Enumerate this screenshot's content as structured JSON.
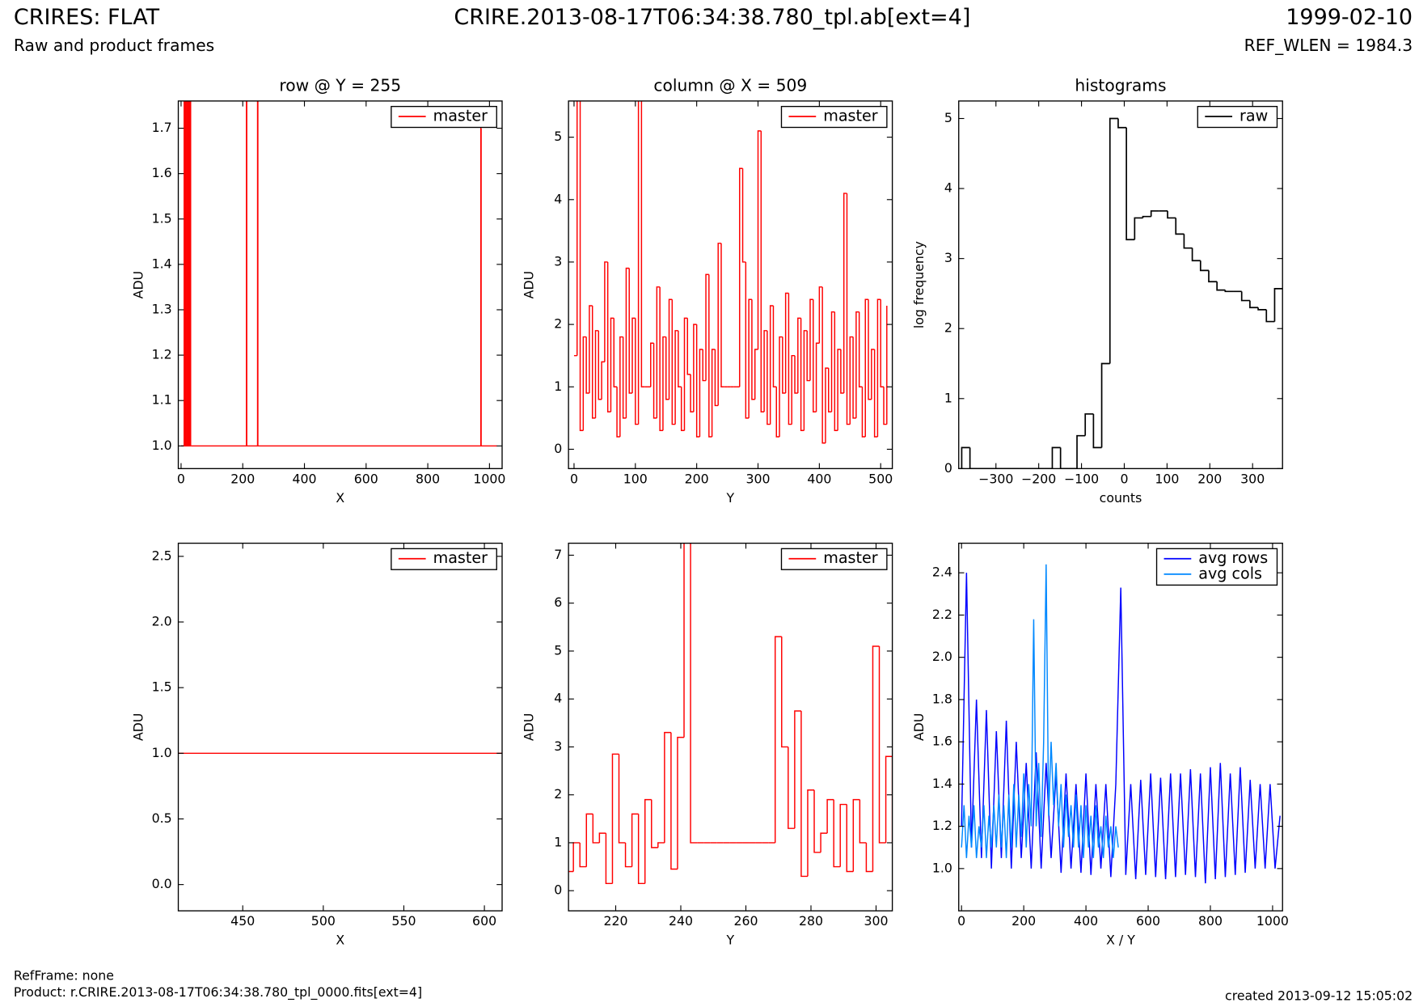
{
  "header": {
    "title": "CRIRES: FLAT",
    "subtitle": "Raw and product frames",
    "file": "CRIRE.2013-08-17T06:34:38.780_tpl.ab[ext=4]",
    "date": "1999-02-10",
    "ref_wlen": "REF_WLEN = 1984.3"
  },
  "footer": {
    "ref_frame": "RefFrame: none",
    "product": "Product: r.CRIRE.2013-08-17T06:34:38.780_tpl_0000.fits[ext=4]",
    "created": "created 2013-09-12 15:05:02"
  },
  "chart_data": [
    {
      "type": "line",
      "steps": true,
      "title": "row @ Y = 255",
      "x_label": "X",
      "y_label": "ADU",
      "legend": "upper right",
      "xlim": [
        -9,
        1041
      ],
      "ylim": [
        0.95,
        1.76
      ],
      "xticks": [
        0,
        200,
        400,
        600,
        800,
        1000
      ],
      "yticks": [
        {
          "value": 1.0,
          "label": "1.0"
        },
        1.1,
        1.2,
        1.3,
        1.4,
        1.5,
        1.6,
        1.7
      ],
      "series": [
        {
          "name": "master",
          "color": "#ff0000",
          "x": [
            0,
            10,
            11,
            14,
            15,
            18,
            19,
            22,
            23,
            26,
            27,
            30,
            31,
            34,
            212,
            213,
            248,
            249,
            972,
            973,
            1024
          ],
          "values": [
            1,
            2,
            1,
            2,
            1,
            2,
            1,
            2,
            1,
            2,
            1,
            2,
            1,
            1,
            2,
            1,
            2,
            1,
            1.7,
            1,
            1
          ]
        }
      ]
    },
    {
      "type": "line",
      "steps": true,
      "title": "column @ X = 509",
      "x_label": "Y",
      "y_label": "ADU",
      "legend": "upper right",
      "xlim": [
        -9,
        519
      ],
      "ylim": [
        -0.31,
        5.58
      ],
      "xticks": [
        0,
        100,
        200,
        300,
        400,
        500
      ],
      "yticks": [
        0,
        1,
        2,
        3,
        4,
        5
      ],
      "series": [
        {
          "name": "master",
          "color": "#ff0000",
          "x": [
            0,
            5,
            10,
            15,
            20,
            25,
            30,
            35,
            40,
            45,
            50,
            55,
            60,
            65,
            70,
            75,
            80,
            85,
            90,
            95,
            100,
            105,
            110,
            115,
            120,
            125,
            130,
            135,
            140,
            145,
            150,
            155,
            160,
            165,
            170,
            175,
            180,
            185,
            190,
            195,
            200,
            205,
            210,
            215,
            220,
            225,
            230,
            235,
            240,
            245,
            250,
            255,
            260,
            265,
            270,
            275,
            280,
            285,
            290,
            295,
            300,
            305,
            310,
            315,
            320,
            325,
            330,
            335,
            340,
            345,
            350,
            355,
            360,
            365,
            370,
            375,
            380,
            385,
            390,
            395,
            400,
            405,
            410,
            415,
            420,
            425,
            430,
            435,
            440,
            445,
            450,
            455,
            460,
            465,
            470,
            475,
            480,
            485,
            490,
            495,
            500,
            505,
            510
          ],
          "values": [
            1.5,
            5.6,
            0.3,
            1.8,
            0.9,
            2.3,
            0.5,
            1.9,
            0.8,
            1.4,
            3.0,
            0.6,
            2.1,
            1.0,
            0.2,
            1.8,
            0.5,
            2.9,
            0.9,
            2.1,
            0.4,
            5.6,
            1,
            1,
            1,
            1.7,
            0.5,
            2.6,
            0.3,
            1.8,
            0.8,
            2.4,
            0.4,
            1.9,
            1.0,
            0.3,
            2.1,
            1.2,
            0.6,
            2.0,
            0.2,
            1.6,
            1.1,
            2.8,
            0.2,
            1.6,
            0.7,
            3.3,
            1,
            1,
            1,
            1,
            1,
            1,
            4.5,
            3.0,
            0.5,
            2.4,
            0.8,
            1.6,
            5.1,
            0.6,
            1.9,
            0.4,
            2.3,
            1.0,
            0.2,
            1.8,
            0.9,
            2.5,
            0.4,
            1.5,
            0.9,
            2.1,
            0.3,
            1.9,
            1.1,
            2.4,
            0.6,
            1.7,
            2.6,
            0.1,
            1.3,
            0.6,
            2.2,
            0.3,
            1.6,
            0.9,
            4.1,
            0.4,
            1.8,
            0.5,
            2.2,
            1.0,
            0.2,
            2.4,
            0.8,
            1.6,
            0.2,
            2.4,
            1.0,
            0.4,
            2.3
          ]
        }
      ]
    },
    {
      "type": "histogram",
      "title": "histograms",
      "x_label": "counts",
      "y_label": "log frequency",
      "legend": "upper right",
      "xlim": [
        -387,
        370
      ],
      "ylim": [
        0,
        5.25
      ],
      "xticks": [
        {
          "value": -300,
          "label": "−300"
        },
        {
          "value": -200,
          "label": "−200"
        },
        {
          "value": -100,
          "label": "−100"
        },
        0,
        100,
        200,
        300
      ],
      "yticks": [
        0,
        1,
        2,
        3,
        4,
        5
      ],
      "series": [
        {
          "name": "raw",
          "color": "#000000",
          "bins": [
            -380,
            -360.75,
            -341.5,
            -322.25,
            -303,
            -283.75,
            -264.5,
            -245.25,
            -226,
            -206.75,
            -187.5,
            -168.25,
            -149,
            -129.75,
            -110.5,
            -91.25,
            -72,
            -52.75,
            -33.5,
            -14.25,
            5,
            24.25,
            43.5,
            62.75,
            82,
            101.25,
            120.5,
            139.75,
            159,
            178.25,
            197.5,
            216.75,
            236,
            255.25,
            274.5,
            293.75,
            313,
            332.25,
            351.5,
            370.75
          ],
          "values": [
            0.3,
            0,
            0,
            0,
            0,
            0,
            0,
            0,
            0,
            0,
            0,
            0.3,
            0,
            0,
            0.47,
            0.78,
            0.3,
            1.5,
            5.0,
            4.87,
            3.27,
            3.58,
            3.6,
            3.68,
            3.68,
            3.58,
            3.35,
            3.15,
            2.97,
            2.83,
            2.67,
            2.55,
            2.53,
            2.53,
            2.4,
            2.3,
            2.27,
            2.1,
            2.57
          ]
        }
      ]
    },
    {
      "type": "line",
      "x_label": "X",
      "y_label": "ADU",
      "legend": "upper right",
      "xlim": [
        410,
        611
      ],
      "ylim": [
        -0.2,
        2.6
      ],
      "xticks": [
        450,
        500,
        550,
        600
      ],
      "yticks": [
        {
          "value": 0,
          "label": "0.0"
        },
        0.5,
        {
          "value": 1,
          "label": "1.0"
        },
        1.5,
        {
          "value": 2,
          "label": "2.0"
        },
        2.5
      ],
      "series": [
        {
          "name": "master",
          "color": "#ff0000",
          "x": [
            410,
            611
          ],
          "values": [
            1,
            1
          ]
        }
      ]
    },
    {
      "type": "line",
      "steps": true,
      "x_label": "Y",
      "y_label": "ADU",
      "legend": "upper right",
      "xlim": [
        205.5,
        305
      ],
      "ylim": [
        -0.42,
        7.25
      ],
      "xticks": [
        220,
        240,
        260,
        280,
        300
      ],
      "yticks": [
        0,
        1,
        2,
        3,
        4,
        5,
        6,
        7
      ],
      "series": [
        {
          "name": "master",
          "color": "#ff0000",
          "x": [
            205,
            207,
            209,
            211,
            213,
            215,
            217,
            219,
            221,
            223,
            225,
            227,
            229,
            231,
            233,
            235,
            237,
            239,
            241,
            243,
            245,
            247,
            249,
            251,
            253,
            255,
            257,
            259,
            261,
            263,
            265,
            267,
            269,
            271,
            273,
            275,
            277,
            279,
            281,
            283,
            285,
            287,
            289,
            291,
            293,
            295,
            297,
            299,
            301,
            303,
            305
          ],
          "values": [
            0.4,
            1.0,
            0.5,
            1.6,
            1.0,
            1.2,
            0.15,
            2.85,
            1.0,
            0.5,
            1.6,
            0.15,
            1.9,
            0.9,
            1.0,
            3.3,
            0.45,
            3.2,
            8.0,
            1,
            1,
            1,
            1,
            1,
            1,
            1,
            1,
            1,
            1,
            1,
            1,
            1,
            5.3,
            3.0,
            1.3,
            3.75,
            0.3,
            2.1,
            0.8,
            1.2,
            1.9,
            0.5,
            1.8,
            0.4,
            1.9,
            1.0,
            0.4,
            5.1,
            1.0,
            2.8,
            1.0
          ]
        }
      ]
    },
    {
      "type": "line",
      "x_label": "X / Y",
      "y_label": "ADU",
      "legend": "upper right",
      "xlim": [
        -9,
        1032
      ],
      "ylim": [
        0.8,
        2.54
      ],
      "xticks": [
        0,
        200,
        400,
        600,
        800,
        1000
      ],
      "yticks": [
        {
          "value": 1.0,
          "label": "1.0"
        },
        1.2,
        1.4,
        1.6,
        1.8,
        {
          "value": 2.0,
          "label": "2.0"
        },
        2.2,
        2.4
      ],
      "series": [
        {
          "name": "avg rows",
          "color": "#0000ff",
          "x": [
            0,
            16,
            32,
            48,
            64,
            80,
            96,
            112,
            128,
            144,
            160,
            176,
            192,
            208,
            224,
            240,
            256,
            272,
            288,
            304,
            320,
            336,
            352,
            368,
            384,
            400,
            416,
            432,
            448,
            464,
            480,
            496,
            512,
            528,
            544,
            560,
            576,
            592,
            608,
            624,
            640,
            656,
            672,
            688,
            704,
            720,
            736,
            752,
            768,
            784,
            800,
            816,
            832,
            848,
            864,
            880,
            896,
            912,
            928,
            944,
            960,
            976,
            992,
            1008,
            1024
          ],
          "values": [
            1.2,
            2.4,
            1.1,
            1.8,
            1.05,
            1.75,
            1.0,
            1.65,
            1.05,
            1.7,
            1.0,
            1.6,
            1.05,
            1.5,
            1.0,
            1.55,
            1.0,
            1.5,
            1.05,
            1.45,
            0.98,
            1.45,
            1.0,
            1.4,
            0.98,
            1.45,
            0.97,
            1.4,
            1.0,
            1.4,
            0.96,
            1.4,
            2.33,
            0.97,
            1.4,
            0.95,
            1.42,
            0.97,
            1.45,
            0.96,
            1.43,
            0.95,
            1.45,
            0.96,
            1.45,
            0.97,
            1.47,
            0.96,
            1.45,
            0.93,
            1.48,
            0.95,
            1.5,
            0.96,
            1.45,
            0.97,
            1.48,
            0.98,
            1.42,
            1.0,
            1.4,
            1.0,
            1.4,
            1.0,
            1.25
          ]
        },
        {
          "name": "avg cols",
          "color": "#0088ff",
          "x": [
            0,
            8,
            16,
            24,
            32,
            40,
            48,
            56,
            64,
            72,
            80,
            88,
            96,
            104,
            112,
            120,
            128,
            136,
            144,
            152,
            160,
            168,
            176,
            184,
            192,
            200,
            208,
            216,
            224,
            232,
            240,
            248,
            256,
            264,
            272,
            280,
            288,
            296,
            304,
            312,
            320,
            328,
            336,
            344,
            352,
            360,
            368,
            376,
            384,
            392,
            400,
            408,
            416,
            424,
            432,
            440,
            448,
            456,
            464,
            472,
            480,
            488,
            496,
            504
          ],
          "values": [
            1.1,
            1.3,
            1.05,
            1.25,
            1.1,
            1.3,
            1.05,
            1.2,
            1.1,
            1.3,
            1.05,
            1.25,
            1.1,
            1.3,
            1.1,
            1.35,
            1.1,
            1.3,
            1.05,
            1.35,
            1.1,
            1.4,
            1.1,
            1.35,
            1.15,
            1.45,
            1.1,
            1.4,
            1.2,
            2.18,
            1.2,
            1.5,
            1.15,
            1.6,
            2.44,
            1.25,
            1.6,
            1.3,
            1.5,
            1.2,
            1.4,
            1.1,
            1.35,
            1.15,
            1.3,
            1.1,
            1.35,
            1.1,
            1.3,
            1.05,
            1.3,
            1.1,
            1.25,
            1.05,
            1.3,
            1.1,
            1.2,
            1.05,
            1.25,
            1.1,
            1.2,
            1.05,
            1.2,
            1.1
          ]
        }
      ]
    }
  ]
}
